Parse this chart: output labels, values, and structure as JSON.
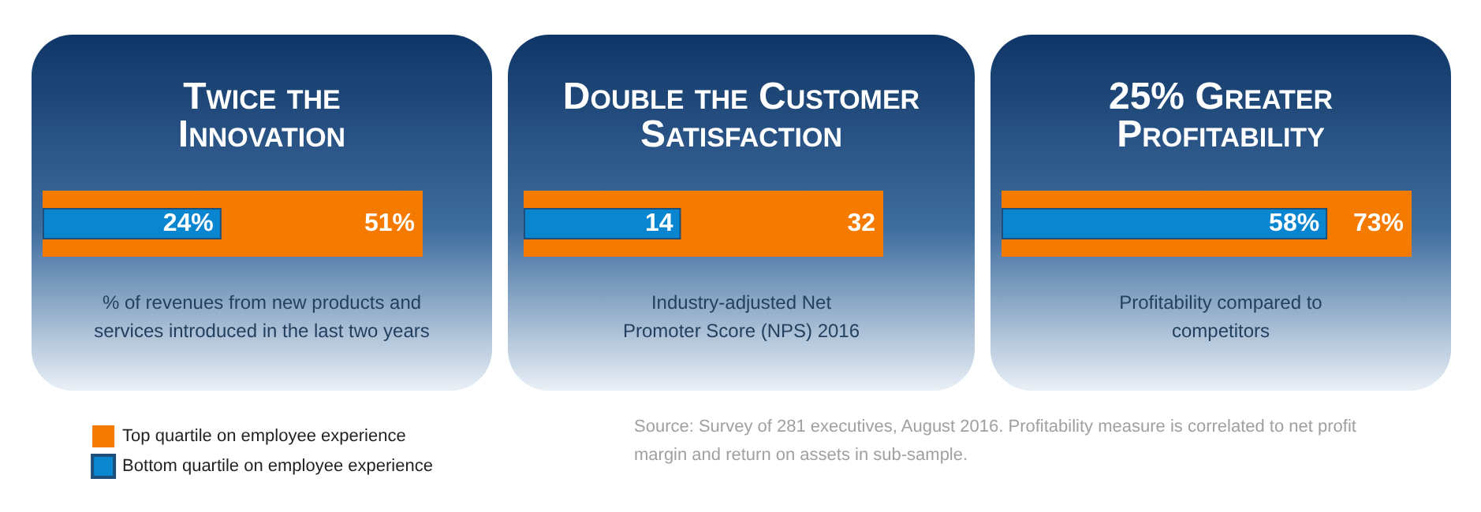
{
  "chart_data": [
    {
      "type": "bar",
      "orientation": "horizontal",
      "title": "Twice the Innovation",
      "xlabel": "% of revenues from new products and services introduced in the last two years",
      "categories": [
        null
      ],
      "series": [
        {
          "name": "Top quartile on employee experience",
          "color": "#f47a00",
          "values": [
            51
          ],
          "value_labels": [
            "51%"
          ]
        },
        {
          "name": "Bottom quartile on employee experience",
          "color": "#0a86d0",
          "values": [
            24
          ],
          "value_labels": [
            "24%"
          ]
        }
      ],
      "legend": "bottom"
    },
    {
      "type": "bar",
      "orientation": "horizontal",
      "title": "Double the Customer Satisfaction",
      "xlabel": "Industry-adjusted Net Promoter Score (NPS) 2016",
      "categories": [
        null
      ],
      "series": [
        {
          "color": "#f47a00",
          "values": [
            32
          ],
          "value_labels": [
            "32"
          ]
        },
        {
          "color": "#0a86d0",
          "values": [
            14
          ],
          "value_labels": [
            "14"
          ]
        }
      ],
      "legend": false
    },
    {
      "type": "bar",
      "orientation": "horizontal",
      "title": "25% Greater Profitability",
      "xlabel": "Profitability compared to competitors",
      "categories": [
        null
      ],
      "series": [
        {
          "color": "#f47a00",
          "values": [
            73
          ],
          "value_labels": [
            "73%"
          ]
        },
        {
          "color": "#0a86d0",
          "values": [
            58
          ],
          "value_labels": [
            "58%"
          ]
        }
      ],
      "legend": false,
      "annotations": [
        "Source: Survey of 281 executives, August 2016. Profitability measure is correlated to net profit margin and return on assets in sub-sample."
      ]
    }
  ]
}
